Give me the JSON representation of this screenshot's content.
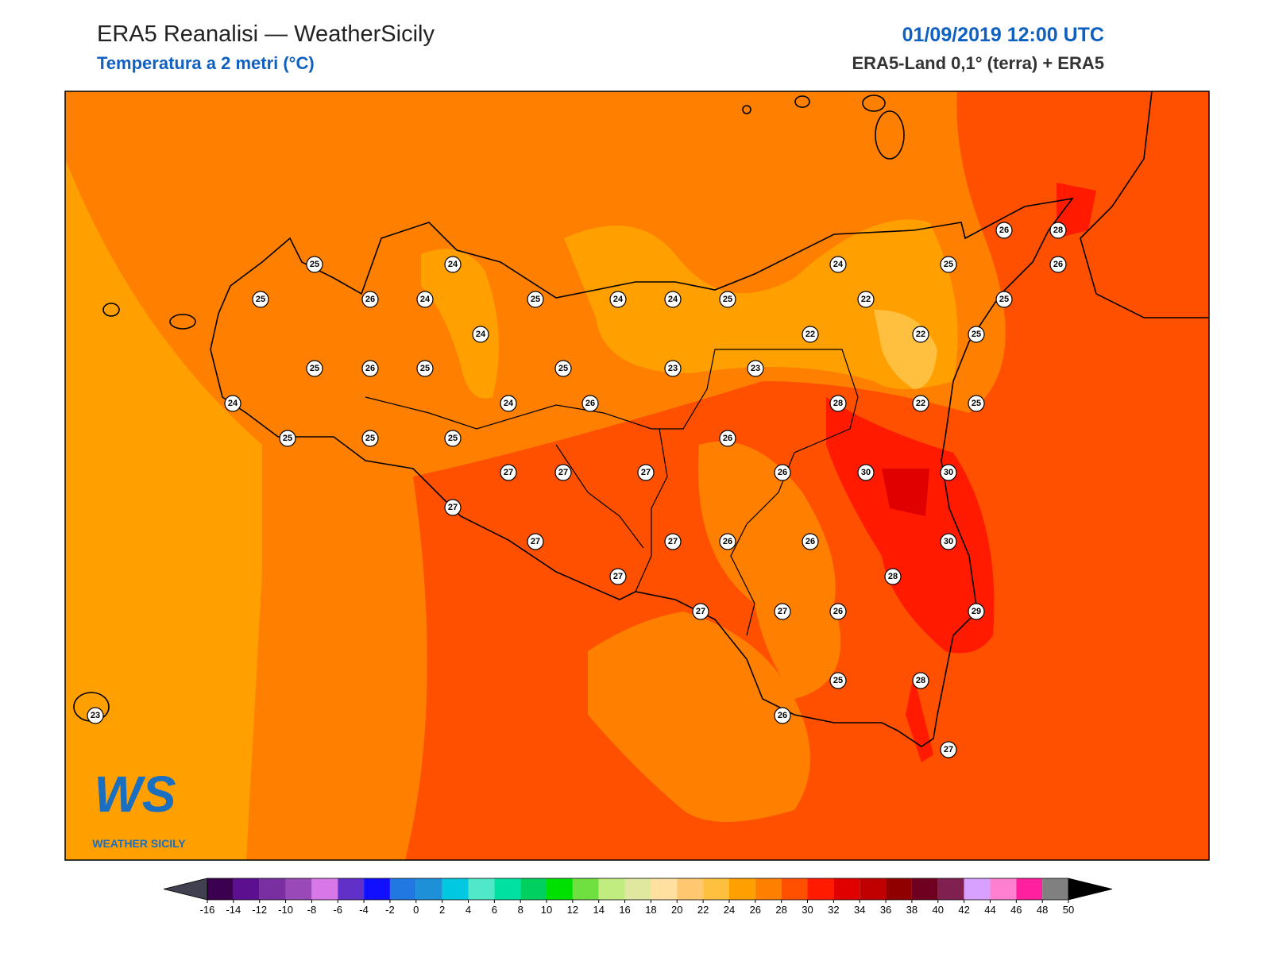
{
  "header": {
    "title": "ERA5 Reanalisi — WeatherSicily",
    "subtitle": "Temperatura a 2 metri (°C)",
    "datetime": "01/09/2019 12:00 UTC",
    "source": "ERA5-Land 0,1° (terra) + ERA5"
  },
  "stations": [
    26,
    28,
    25,
    24,
    24,
    25,
    26,
    25,
    26,
    24,
    25,
    24,
    24,
    25,
    22,
    25,
    24,
    22,
    22,
    25,
    25,
    26,
    25,
    25,
    23,
    23,
    24,
    24,
    26,
    28,
    22,
    25,
    25,
    25,
    25,
    26,
    27,
    27,
    27,
    26,
    30,
    30,
    27,
    27,
    27,
    26,
    26,
    30,
    28,
    27,
    29,
    27,
    27,
    26,
    25,
    28,
    23,
    26,
    27
  ],
  "logo": {
    "mark": "WS",
    "text": "WEATHER SICILY"
  },
  "colorbar": {
    "ticks": [
      -16,
      -14,
      -12,
      -10,
      -8,
      -6,
      -4,
      -2,
      0,
      2,
      4,
      6,
      8,
      10,
      12,
      14,
      16,
      18,
      20,
      22,
      24,
      26,
      28,
      30,
      32,
      34,
      36,
      38,
      40,
      42,
      44,
      46,
      48,
      50
    ],
    "colors": [
      "#3c0050",
      "#5c1090",
      "#7a2fa0",
      "#9a4ab8",
      "#d878e8",
      "#6030c8",
      "#1010ff",
      "#2078e0",
      "#1e90d8",
      "#00c8e0",
      "#50e8c8",
      "#00e0a0",
      "#00d060",
      "#00e000",
      "#70e040",
      "#c0ec80",
      "#e0e8a0",
      "#ffe0a0",
      "#ffc870",
      "#ffc040",
      "#ff9f00",
      "#ff7f00",
      "#ff5000",
      "#ff1a00",
      "#e00000",
      "#c00000",
      "#900000",
      "#700020",
      "#802050",
      "#d8a0ff",
      "#ff80d0",
      "#ff20a0",
      "#808080",
      "#404040"
    ],
    "under_color": "#404050",
    "over_color": "#000000"
  }
}
